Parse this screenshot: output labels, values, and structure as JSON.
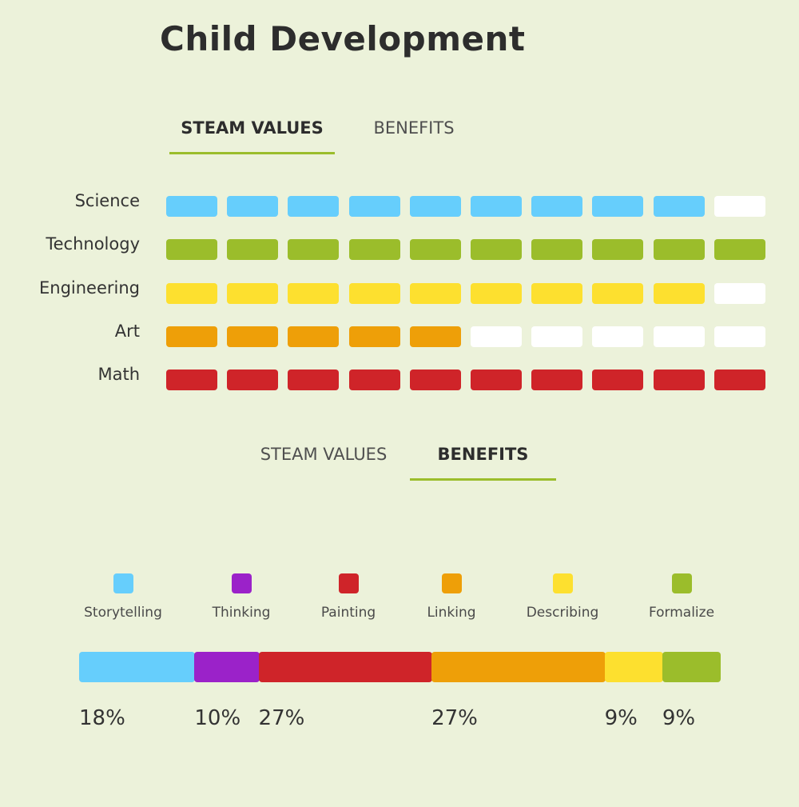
{
  "title": "Child Development",
  "tabs_top": {
    "steam_label": "STEAM VALUES",
    "benefits_label": "BENEFITS",
    "active": "steam"
  },
  "tabs_bottom": {
    "steam_label": "STEAM VALUES",
    "benefits_label": "BENEFITS",
    "active": "benefits"
  },
  "steam": {
    "total_segments": 10,
    "empty_color": "#ffffff",
    "rows": [
      {
        "label": "Science",
        "filled": 9,
        "color": "#66cefc"
      },
      {
        "label": "Technology",
        "filled": 10,
        "color": "#9bbd2b"
      },
      {
        "label": "Engineering",
        "filled": 9,
        "color": "#fde02f"
      },
      {
        "label": "Art",
        "filled": 5,
        "color": "#ee9f08"
      },
      {
        "label": "Math",
        "filled": 10,
        "color": "#cf2429"
      }
    ]
  },
  "benefits": {
    "legend": [
      {
        "label": "Storytelling",
        "color": "#66cefc",
        "icon": "square-swatch"
      },
      {
        "label": "Thinking",
        "color": "#9b22c9",
        "icon": "square-swatch"
      },
      {
        "label": "Painting",
        "color": "#cf2429",
        "icon": "square-swatch"
      },
      {
        "label": "Linking",
        "color": "#ee9f08",
        "icon": "square-swatch"
      },
      {
        "label": "Describing",
        "color": "#fde02f",
        "icon": "square-swatch"
      },
      {
        "label": "Formalize",
        "color": "#9bbd2b",
        "icon": "square-swatch"
      }
    ],
    "segments": [
      {
        "label": "Storytelling",
        "value": 18,
        "display": "18%",
        "color": "#66cefc"
      },
      {
        "label": "Thinking",
        "value": 10,
        "display": "10%",
        "color": "#9b22c9"
      },
      {
        "label": "Painting",
        "value": 27,
        "display": "27%",
        "color": "#cf2429"
      },
      {
        "label": "Linking",
        "value": 27,
        "display": "27%",
        "color": "#ee9f08"
      },
      {
        "label": "Describing",
        "value": 9,
        "display": "9%",
        "color": "#fde02f"
      },
      {
        "label": "Formalize",
        "value": 9,
        "display": "9%",
        "color": "#9bbd2b"
      }
    ]
  }
}
